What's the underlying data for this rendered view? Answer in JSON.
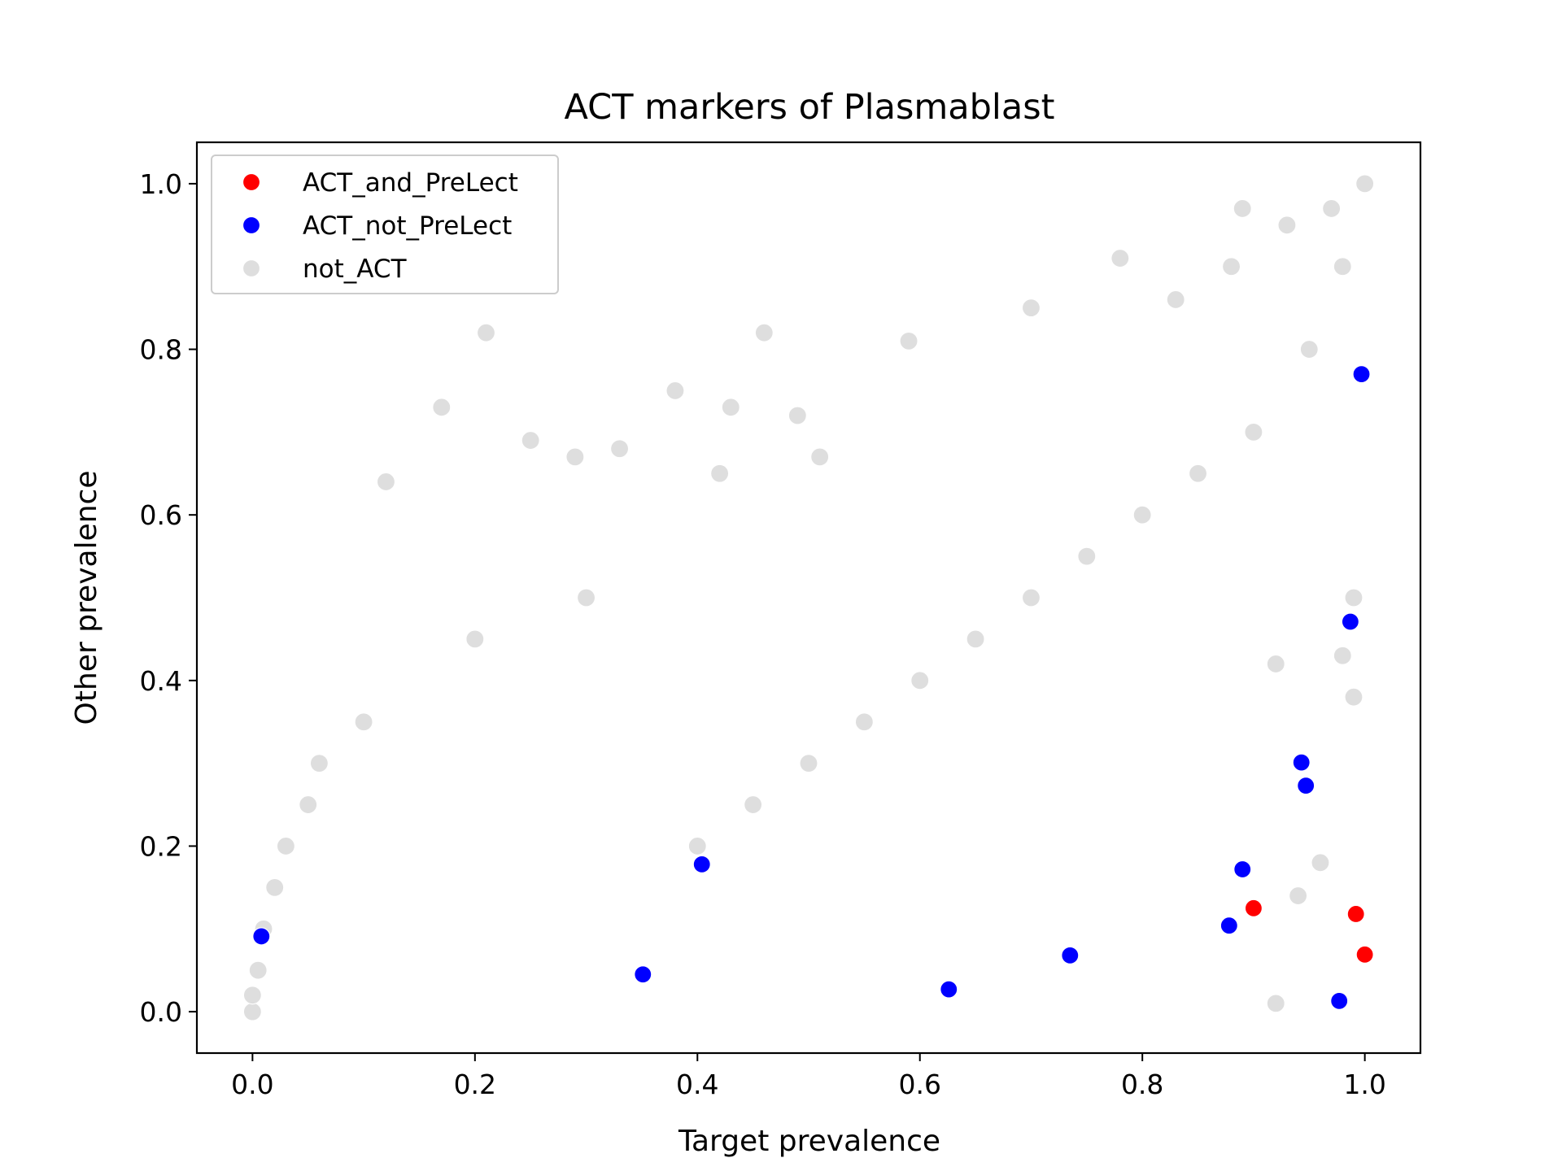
{
  "chart_data": {
    "type": "scatter",
    "title": "ACT markers of Plasmablast",
    "xlabel": "Target prevalence",
    "ylabel": "Other prevalence",
    "xlim": [
      -0.05,
      1.05
    ],
    "ylim": [
      -0.05,
      1.05
    ],
    "x_ticks": [
      "0.0",
      "0.2",
      "0.4",
      "0.6",
      "0.8",
      "1.0"
    ],
    "y_ticks": [
      "0.0",
      "0.2",
      "0.4",
      "0.6",
      "0.8",
      "1.0"
    ],
    "grid": false,
    "legend_placement": "upper-left",
    "series": [
      {
        "name": "ACT_and_PreLect",
        "color": "#ff0000",
        "points": [
          [
            0.9,
            0.125
          ],
          [
            0.992,
            0.118
          ],
          [
            1.0,
            0.069
          ]
        ]
      },
      {
        "name": "ACT_not_PreLect",
        "color": "#0000ff",
        "points": [
          [
            0.008,
            0.091
          ],
          [
            0.351,
            0.045
          ],
          [
            0.404,
            0.178
          ],
          [
            0.626,
            0.027
          ],
          [
            0.735,
            0.068
          ],
          [
            0.878,
            0.104
          ],
          [
            0.89,
            0.172
          ],
          [
            0.943,
            0.301
          ],
          [
            0.947,
            0.273
          ],
          [
            0.977,
            0.013
          ],
          [
            0.987,
            0.471
          ],
          [
            0.997,
            0.77
          ]
        ]
      },
      {
        "name": "not_ACT",
        "color": "#c8c8c8",
        "description_of_density": "dense cloud",
        "points": [
          [
            0.0,
            0.0
          ],
          [
            0.0,
            0.02
          ],
          [
            0.005,
            0.05
          ],
          [
            0.01,
            0.1
          ],
          [
            0.02,
            0.15
          ],
          [
            0.03,
            0.2
          ],
          [
            0.05,
            0.25
          ],
          [
            0.06,
            0.3
          ],
          [
            0.1,
            0.35
          ],
          [
            0.12,
            0.64
          ],
          [
            0.21,
            0.82
          ],
          [
            0.17,
            0.73
          ],
          [
            0.25,
            0.69
          ],
          [
            0.38,
            0.75
          ],
          [
            0.43,
            0.73
          ],
          [
            0.49,
            0.72
          ],
          [
            0.46,
            0.82
          ],
          [
            0.59,
            0.81
          ],
          [
            0.2,
            0.45
          ],
          [
            0.3,
            0.5
          ],
          [
            0.33,
            0.68
          ],
          [
            0.29,
            0.67
          ],
          [
            0.42,
            0.65
          ],
          [
            0.51,
            0.67
          ],
          [
            0.4,
            0.2
          ],
          [
            0.45,
            0.25
          ],
          [
            0.5,
            0.3
          ],
          [
            0.55,
            0.35
          ],
          [
            0.6,
            0.4
          ],
          [
            0.65,
            0.45
          ],
          [
            0.7,
            0.5
          ],
          [
            0.75,
            0.55
          ],
          [
            0.8,
            0.6
          ],
          [
            0.85,
            0.65
          ],
          [
            0.9,
            0.7
          ],
          [
            0.95,
            0.8
          ],
          [
            0.98,
            0.9
          ],
          [
            1.0,
            1.0
          ],
          [
            0.97,
            0.97
          ],
          [
            0.93,
            0.95
          ],
          [
            0.88,
            0.9
          ],
          [
            0.7,
            0.85
          ],
          [
            0.83,
            0.86
          ],
          [
            0.78,
            0.91
          ],
          [
            0.89,
            0.97
          ],
          [
            0.92,
            0.42
          ],
          [
            0.96,
            0.18
          ],
          [
            0.94,
            0.14
          ],
          [
            0.92,
            0.01
          ],
          [
            0.99,
            0.38
          ],
          [
            0.98,
            0.43
          ],
          [
            0.99,
            0.5
          ]
        ]
      }
    ]
  }
}
